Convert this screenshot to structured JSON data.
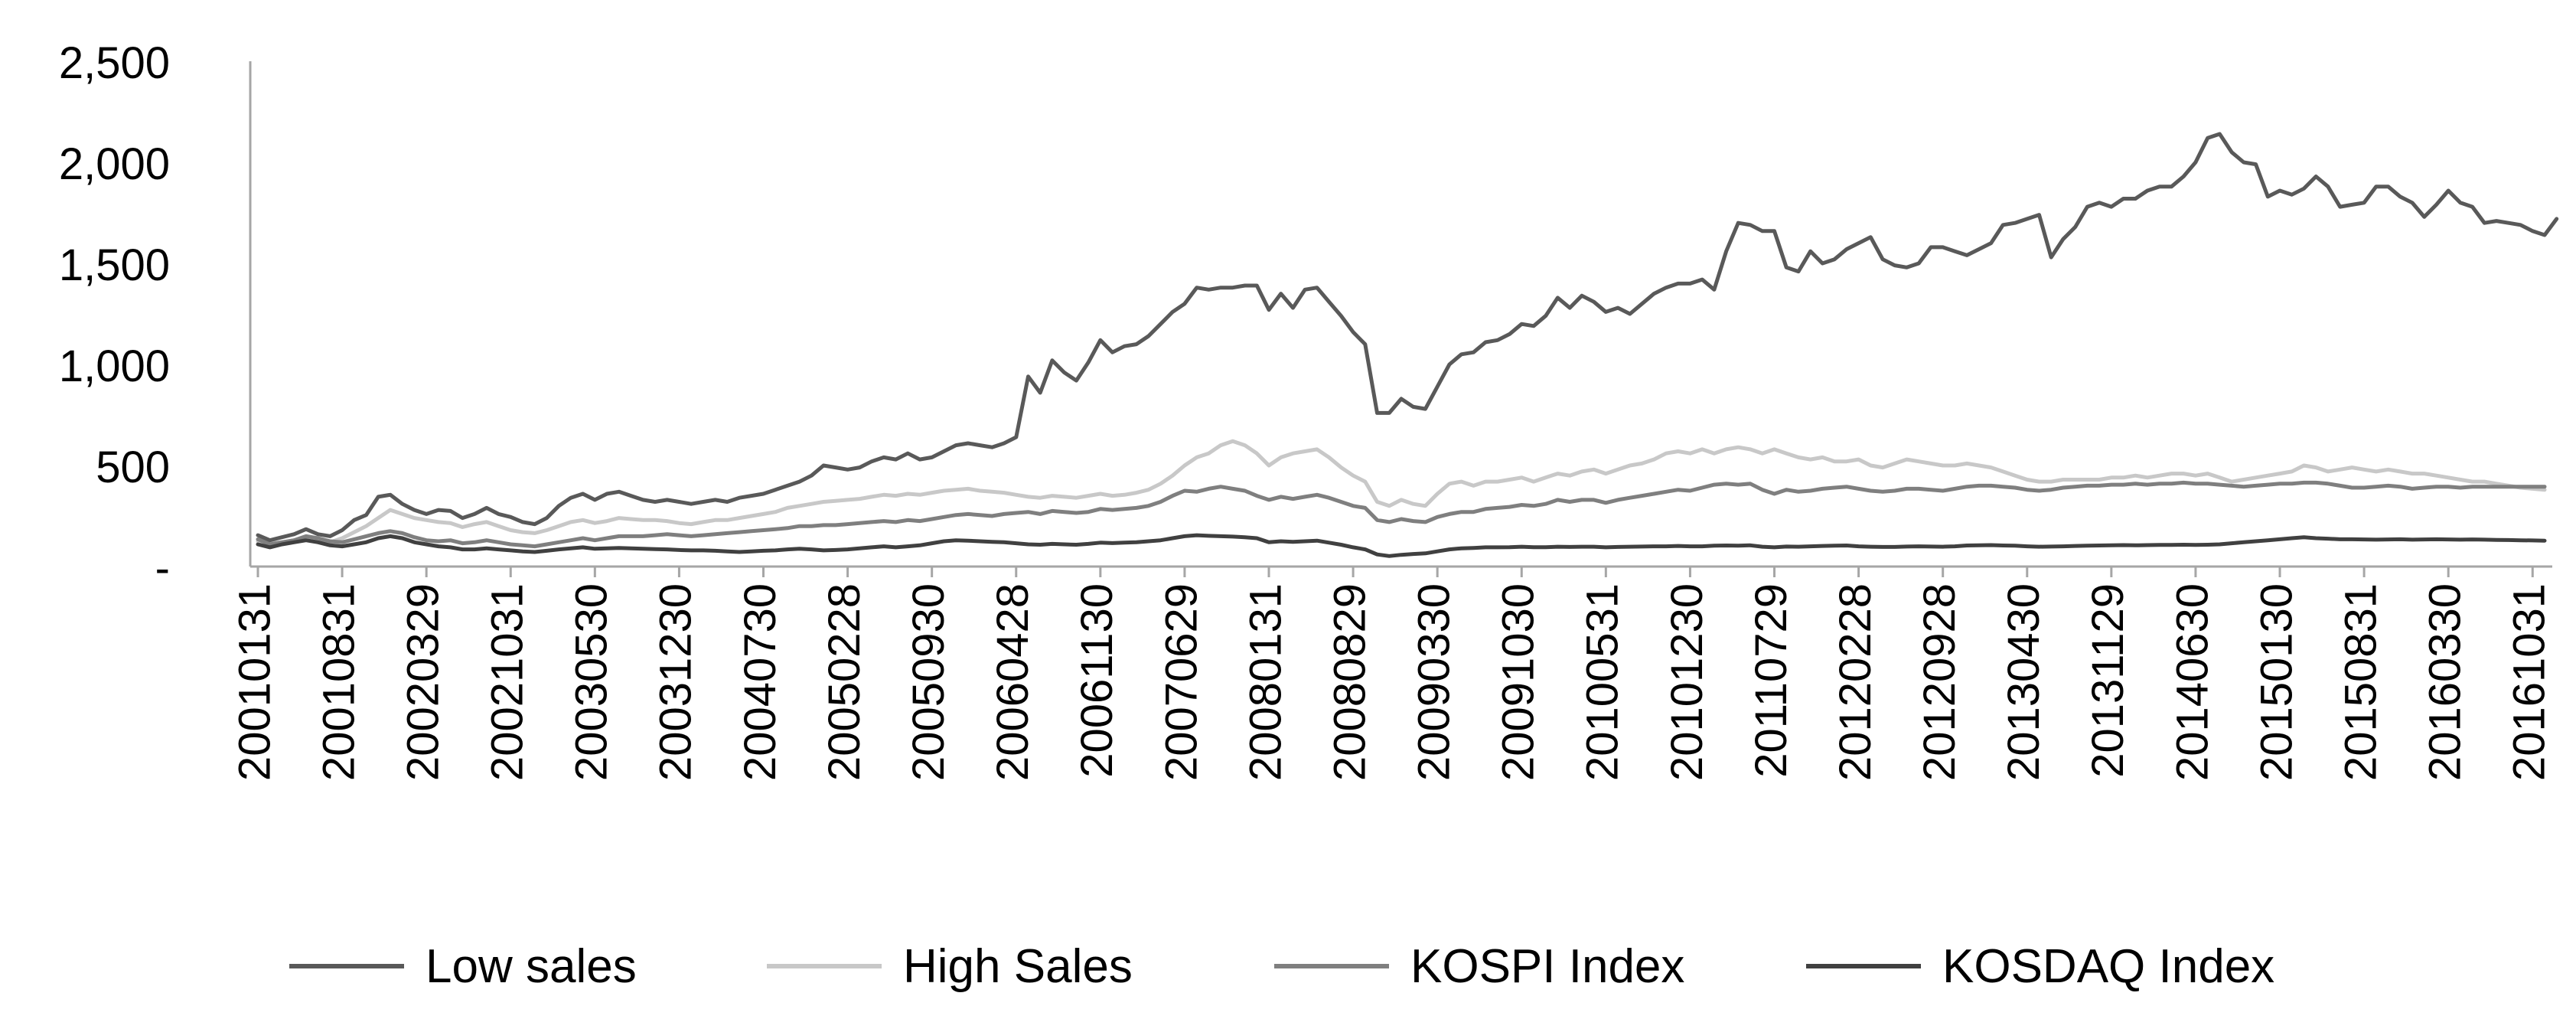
{
  "chart_data": {
    "type": "line",
    "title": "",
    "xlabel": "",
    "ylabel": "",
    "ylim": [
      0,
      2500
    ],
    "y_ticks": [
      0,
      500,
      1000,
      1500,
      2000,
      2500
    ],
    "y_tick_labels": [
      "-",
      "500",
      "1,000",
      "1,500",
      "2,000",
      "2,500"
    ],
    "grid": false,
    "legend_position": "bottom",
    "x_tick_labels": [
      "20010131",
      "20010831",
      "20020329",
      "20021031",
      "20030530",
      "20031230",
      "20040730",
      "20050228",
      "20050930",
      "20060428",
      "20061130",
      "20070629",
      "20080131",
      "20080829",
      "20090330",
      "20091030",
      "20100531",
      "20101230",
      "20110729",
      "20120228",
      "20120928",
      "20130430",
      "20131129",
      "20140630",
      "20150130",
      "20150831",
      "20160330",
      "20161031"
    ],
    "x_tick_index": [
      0,
      7,
      14,
      21,
      28,
      35,
      42,
      49,
      56,
      63,
      70,
      77,
      84,
      91,
      98,
      105,
      112,
      119,
      126,
      133,
      140,
      147,
      154,
      161,
      168,
      175,
      182,
      189
    ],
    "n_points": 191,
    "series": [
      {
        "name": "Low sales",
        "color": "#595959",
        "width": 5,
        "values": [
          155,
          130,
          145,
          160,
          185,
          160,
          150,
          180,
          230,
          255,
          345,
          355,
          310,
          280,
          260,
          280,
          275,
          240,
          260,
          290,
          260,
          245,
          220,
          210,
          240,
          300,
          340,
          360,
          330,
          360,
          370,
          350,
          330,
          320,
          330,
          320,
          310,
          320,
          330,
          320,
          340,
          350,
          360,
          380,
          400,
          420,
          450,
          500,
          490,
          480,
          490,
          520,
          540,
          530,
          560,
          530,
          540,
          570,
          600,
          610,
          600,
          590,
          610,
          640,
          940,
          860,
          1020,
          960,
          920,
          1010,
          1120,
          1060,
          1090,
          1100,
          1140,
          1200,
          1260,
          1300,
          1380,
          1370,
          1380,
          1380,
          1390,
          1390,
          1270,
          1350,
          1280,
          1370,
          1380,
          1310,
          1240,
          1160,
          1100,
          760,
          760,
          830,
          790,
          780,
          890,
          1000,
          1050,
          1060,
          1110,
          1120,
          1150,
          1200,
          1190,
          1240,
          1330,
          1280,
          1340,
          1310,
          1260,
          1280,
          1250,
          1300,
          1350,
          1380,
          1400,
          1400,
          1420,
          1370,
          1560,
          1700,
          1690,
          1660,
          1660,
          1480,
          1460,
          1560,
          1500,
          1520,
          1570,
          1600,
          1630,
          1520,
          1490,
          1480,
          1500,
          1580,
          1580,
          1560,
          1540,
          1570,
          1600,
          1690,
          1700,
          1720,
          1740,
          1530,
          1620,
          1680,
          1780,
          1800,
          1780,
          1820,
          1820,
          1860,
          1880,
          1880,
          1930,
          2000,
          2120,
          2140,
          2050,
          2000,
          1990,
          1830,
          1860,
          1840,
          1870,
          1930,
          1880,
          1780,
          1790,
          1800,
          1880,
          1880,
          1830,
          1800,
          1730,
          1790,
          1860,
          1800,
          1780,
          1700,
          1710,
          1700,
          1690,
          1660,
          1640,
          1720
        ]
      },
      {
        "name": "High Sales",
        "color": "#c8c8c8",
        "width": 5,
        "values": [
          125,
          115,
          120,
          130,
          140,
          130,
          120,
          140,
          170,
          200,
          240,
          280,
          260,
          240,
          230,
          220,
          215,
          195,
          210,
          220,
          200,
          180,
          170,
          165,
          180,
          200,
          220,
          230,
          215,
          225,
          240,
          235,
          230,
          230,
          225,
          215,
          210,
          220,
          230,
          230,
          240,
          250,
          260,
          270,
          290,
          300,
          310,
          320,
          325,
          330,
          335,
          345,
          355,
          350,
          360,
          355,
          365,
          375,
          380,
          385,
          375,
          370,
          365,
          355,
          345,
          340,
          350,
          345,
          340,
          350,
          360,
          350,
          355,
          365,
          380,
          410,
          450,
          500,
          540,
          560,
          600,
          620,
          600,
          560,
          500,
          540,
          560,
          570,
          580,
          540,
          490,
          450,
          420,
          320,
          300,
          330,
          310,
          300,
          360,
          410,
          420,
          400,
          420,
          420,
          430,
          440,
          420,
          440,
          460,
          450,
          470,
          480,
          460,
          480,
          500,
          510,
          530,
          560,
          570,
          560,
          580,
          560,
          580,
          590,
          580,
          560,
          580,
          560,
          540,
          530,
          540,
          520,
          520,
          530,
          500,
          490,
          510,
          530,
          520,
          510,
          500,
          500,
          510,
          500,
          490,
          470,
          450,
          430,
          420,
          420,
          430,
          430,
          430,
          430,
          440,
          440,
          450,
          440,
          450,
          460,
          460,
          450,
          460,
          440,
          420,
          430,
          440,
          450,
          460,
          470,
          500,
          490,
          470,
          480,
          490,
          480,
          470,
          480,
          470,
          460,
          460,
          450,
          440,
          430,
          420,
          420,
          410,
          400,
          390,
          385,
          380
        ]
      },
      {
        "name": "KOSPI Index",
        "color": "#7f7f7f",
        "width": 5,
        "values": [
          135,
          110,
          120,
          130,
          150,
          140,
          125,
          120,
          135,
          150,
          165,
          175,
          165,
          145,
          130,
          125,
          130,
          115,
          120,
          130,
          120,
          110,
          105,
          100,
          110,
          120,
          130,
          140,
          130,
          140,
          150,
          150,
          150,
          155,
          160,
          155,
          150,
          155,
          160,
          165,
          170,
          175,
          180,
          185,
          190,
          200,
          200,
          205,
          205,
          210,
          215,
          220,
          225,
          220,
          230,
          225,
          235,
          245,
          255,
          260,
          255,
          250,
          260,
          265,
          270,
          260,
          275,
          270,
          265,
          270,
          285,
          280,
          285,
          290,
          300,
          320,
          350,
          375,
          370,
          385,
          395,
          385,
          375,
          350,
          330,
          345,
          335,
          345,
          355,
          340,
          320,
          300,
          290,
          230,
          220,
          235,
          225,
          220,
          245,
          260,
          270,
          270,
          285,
          290,
          295,
          305,
          300,
          310,
          330,
          320,
          330,
          330,
          315,
          330,
          340,
          350,
          360,
          370,
          380,
          375,
          390,
          405,
          410,
          405,
          410,
          380,
          360,
          380,
          370,
          375,
          385,
          390,
          395,
          385,
          375,
          370,
          375,
          385,
          385,
          380,
          375,
          385,
          395,
          400,
          400,
          395,
          390,
          380,
          375,
          380,
          390,
          395,
          400,
          400,
          405,
          405,
          410,
          405,
          410,
          410,
          415,
          410,
          410,
          405,
          400,
          395,
          400,
          405,
          410,
          410,
          415,
          415,
          410,
          400,
          390,
          390,
          395,
          400,
          395,
          385,
          390,
          395,
          395,
          390,
          395,
          395,
          395,
          395,
          395,
          395,
          395
        ]
      },
      {
        "name": "KOSDAQ Index",
        "color": "#404040",
        "width": 5,
        "values": [
          110,
          95,
          110,
          120,
          130,
          120,
          105,
          100,
          110,
          120,
          140,
          150,
          140,
          120,
          110,
          100,
          95,
          85,
          85,
          90,
          85,
          80,
          75,
          72,
          78,
          85,
          90,
          95,
          88,
          90,
          92,
          90,
          88,
          86,
          85,
          82,
          80,
          80,
          78,
          75,
          72,
          75,
          78,
          80,
          85,
          88,
          85,
          80,
          82,
          85,
          90,
          95,
          100,
          95,
          100,
          105,
          115,
          125,
          130,
          128,
          125,
          122,
          120,
          115,
          110,
          108,
          112,
          110,
          108,
          112,
          118,
          116,
          118,
          120,
          125,
          130,
          140,
          150,
          155,
          152,
          150,
          148,
          145,
          140,
          120,
          125,
          122,
          125,
          128,
          118,
          108,
          95,
          85,
          60,
          52,
          58,
          62,
          65,
          75,
          85,
          90,
          92,
          95,
          95,
          96,
          98,
          96,
          96,
          98,
          97,
          98,
          98,
          95,
          97,
          98,
          99,
          100,
          100,
          102,
          100,
          100,
          103,
          104,
          103,
          105,
          98,
          95,
          99,
          98,
          100,
          102,
          103,
          104,
          100,
          98,
          97,
          97,
          99,
          100,
          99,
          98,
          100,
          104,
          105,
          106,
          104,
          103,
          100,
          98,
          99,
          100,
          102,
          103,
          104,
          105,
          106,
          105,
          106,
          107,
          107,
          108,
          107,
          108,
          110,
          115,
          120,
          125,
          130,
          135,
          140,
          145,
          140,
          138,
          135,
          135,
          134,
          133,
          134,
          135,
          133,
          134,
          135,
          134,
          133,
          134,
          133,
          132,
          131,
          130,
          129,
          128
        ]
      }
    ]
  }
}
